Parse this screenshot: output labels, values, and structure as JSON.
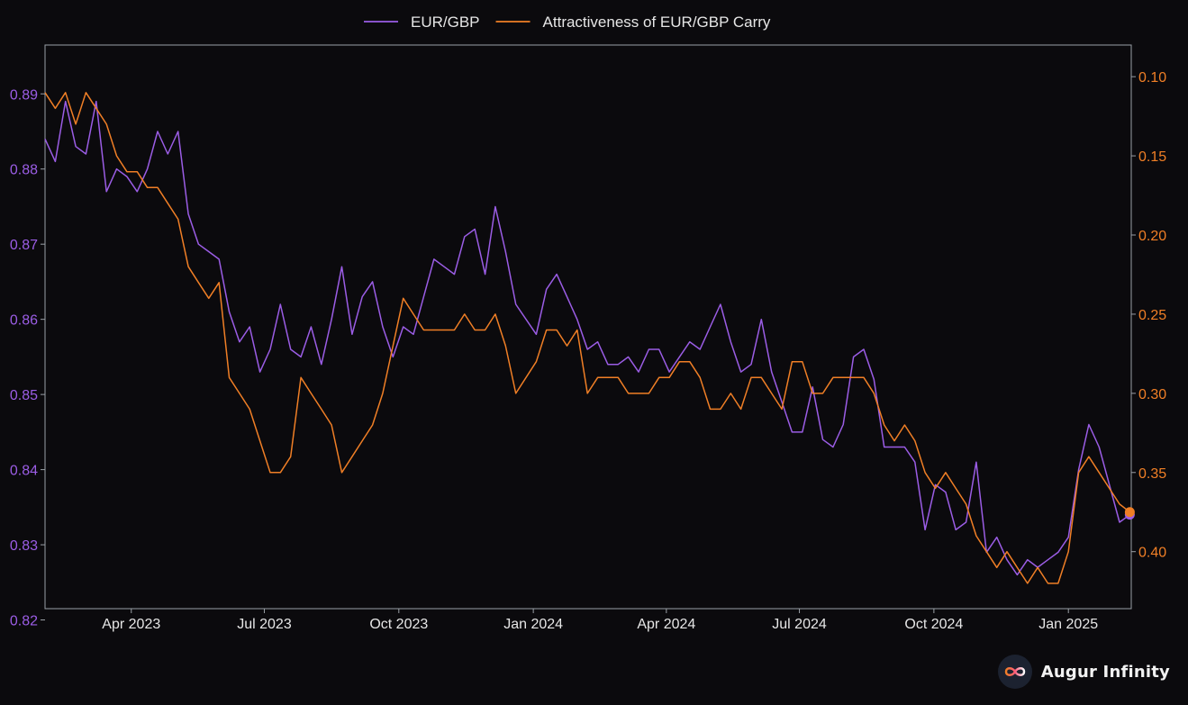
{
  "brand": {
    "name": "Augur Infinity",
    "logo_icon": "infinity-icon"
  },
  "colors": {
    "background": "#0b0a0d",
    "frame": "#9aa0a6",
    "eurgbp": "#9b5de5",
    "carry": "#f07f26",
    "tick_text_x": "#e6e6e6"
  },
  "chart_data": {
    "type": "line",
    "legend_position": "top-center",
    "grid": false,
    "x_axis": {
      "type": "date",
      "range": [
        "2023-02-01",
        "2025-02-13"
      ],
      "ticks": [
        {
          "date": "2023-04-01",
          "label": "Apr 2023"
        },
        {
          "date": "2023-07-01",
          "label": "Jul 2023"
        },
        {
          "date": "2023-10-01",
          "label": "Oct 2023"
        },
        {
          "date": "2024-01-01",
          "label": "Jan 2024"
        },
        {
          "date": "2024-04-01",
          "label": "Apr 2024"
        },
        {
          "date": "2024-07-01",
          "label": "Jul 2024"
        },
        {
          "date": "2024-10-01",
          "label": "Oct 2024"
        },
        {
          "date": "2025-01-01",
          "label": "Jan 2025"
        }
      ]
    },
    "y_left": {
      "range": [
        0.8215,
        0.8965
      ],
      "ticks": [
        0.82,
        0.83,
        0.84,
        0.85,
        0.86,
        0.87,
        0.88,
        0.89
      ],
      "tick_labels": [
        "0.82",
        "0.83",
        "0.84",
        "0.85",
        "0.86",
        "0.87",
        "0.88",
        "0.89"
      ]
    },
    "y_right": {
      "inverted": true,
      "range": [
        0.08,
        0.436
      ],
      "ticks": [
        0.1,
        0.15,
        0.2,
        0.25,
        0.3,
        0.35,
        0.4
      ],
      "tick_labels": [
        "0.10",
        "0.15",
        "0.20",
        "0.25",
        "0.30",
        "0.35",
        "0.40"
      ]
    },
    "series": [
      {
        "name": "EUR/GBP",
        "axis": "left",
        "color": "#9b5de5",
        "end_marker": true,
        "points": [
          [
            "2023-02-01",
            0.884
          ],
          [
            "2023-02-08",
            0.881
          ],
          [
            "2023-02-15",
            0.889
          ],
          [
            "2023-02-22",
            0.883
          ],
          [
            "2023-03-01",
            0.882
          ],
          [
            "2023-03-08",
            0.889
          ],
          [
            "2023-03-15",
            0.877
          ],
          [
            "2023-03-22",
            0.88
          ],
          [
            "2023-03-29",
            0.879
          ],
          [
            "2023-04-05",
            0.877
          ],
          [
            "2023-04-12",
            0.88
          ],
          [
            "2023-04-19",
            0.885
          ],
          [
            "2023-04-26",
            0.882
          ],
          [
            "2023-05-03",
            0.885
          ],
          [
            "2023-05-10",
            0.874
          ],
          [
            "2023-05-17",
            0.87
          ],
          [
            "2023-05-24",
            0.869
          ],
          [
            "2023-05-31",
            0.868
          ],
          [
            "2023-06-07",
            0.861
          ],
          [
            "2023-06-14",
            0.857
          ],
          [
            "2023-06-21",
            0.859
          ],
          [
            "2023-06-28",
            0.853
          ],
          [
            "2023-07-05",
            0.856
          ],
          [
            "2023-07-12",
            0.862
          ],
          [
            "2023-07-19",
            0.856
          ],
          [
            "2023-07-26",
            0.855
          ],
          [
            "2023-08-02",
            0.859
          ],
          [
            "2023-08-09",
            0.854
          ],
          [
            "2023-08-16",
            0.86
          ],
          [
            "2023-08-23",
            0.867
          ],
          [
            "2023-08-30",
            0.858
          ],
          [
            "2023-09-06",
            0.863
          ],
          [
            "2023-09-13",
            0.865
          ],
          [
            "2023-09-20",
            0.859
          ],
          [
            "2023-09-27",
            0.855
          ],
          [
            "2023-10-04",
            0.859
          ],
          [
            "2023-10-11",
            0.858
          ],
          [
            "2023-10-18",
            0.863
          ],
          [
            "2023-10-25",
            0.868
          ],
          [
            "2023-11-01",
            0.867
          ],
          [
            "2023-11-08",
            0.866
          ],
          [
            "2023-11-15",
            0.871
          ],
          [
            "2023-11-22",
            0.872
          ],
          [
            "2023-11-29",
            0.866
          ],
          [
            "2023-12-06",
            0.875
          ],
          [
            "2023-12-13",
            0.869
          ],
          [
            "2023-12-20",
            0.862
          ],
          [
            "2024-01-03",
            0.858
          ],
          [
            "2024-01-10",
            0.864
          ],
          [
            "2024-01-17",
            0.866
          ],
          [
            "2024-01-24",
            0.863
          ],
          [
            "2024-01-31",
            0.86
          ],
          [
            "2024-02-07",
            0.856
          ],
          [
            "2024-02-14",
            0.857
          ],
          [
            "2024-02-21",
            0.854
          ],
          [
            "2024-02-28",
            0.854
          ],
          [
            "2024-03-06",
            0.855
          ],
          [
            "2024-03-13",
            0.853
          ],
          [
            "2024-03-20",
            0.856
          ],
          [
            "2024-03-27",
            0.856
          ],
          [
            "2024-04-03",
            0.853
          ],
          [
            "2024-04-10",
            0.855
          ],
          [
            "2024-04-17",
            0.857
          ],
          [
            "2024-04-24",
            0.856
          ],
          [
            "2024-05-01",
            0.859
          ],
          [
            "2024-05-08",
            0.862
          ],
          [
            "2024-05-15",
            0.857
          ],
          [
            "2024-05-22",
            0.853
          ],
          [
            "2024-05-29",
            0.854
          ],
          [
            "2024-06-05",
            0.86
          ],
          [
            "2024-06-12",
            0.853
          ],
          [
            "2024-06-19",
            0.849
          ],
          [
            "2024-06-26",
            0.845
          ],
          [
            "2024-07-03",
            0.845
          ],
          [
            "2024-07-10",
            0.851
          ],
          [
            "2024-07-17",
            0.844
          ],
          [
            "2024-07-24",
            0.843
          ],
          [
            "2024-07-31",
            0.846
          ],
          [
            "2024-08-07",
            0.855
          ],
          [
            "2024-08-14",
            0.856
          ],
          [
            "2024-08-21",
            0.852
          ],
          [
            "2024-08-28",
            0.843
          ],
          [
            "2024-09-04",
            0.843
          ],
          [
            "2024-09-11",
            0.843
          ],
          [
            "2024-09-18",
            0.841
          ],
          [
            "2024-09-25",
            0.832
          ],
          [
            "2024-10-02",
            0.838
          ],
          [
            "2024-10-09",
            0.837
          ],
          [
            "2024-10-16",
            0.832
          ],
          [
            "2024-10-23",
            0.833
          ],
          [
            "2024-10-30",
            0.841
          ],
          [
            "2024-11-06",
            0.829
          ],
          [
            "2024-11-13",
            0.831
          ],
          [
            "2024-11-20",
            0.828
          ],
          [
            "2024-11-27",
            0.826
          ],
          [
            "2024-12-04",
            0.828
          ],
          [
            "2024-12-11",
            0.827
          ],
          [
            "2024-12-18",
            0.828
          ],
          [
            "2024-12-25",
            0.829
          ],
          [
            "2025-01-01",
            0.831
          ],
          [
            "2025-01-08",
            0.84
          ],
          [
            "2025-01-15",
            0.846
          ],
          [
            "2025-01-22",
            0.843
          ],
          [
            "2025-01-29",
            0.838
          ],
          [
            "2025-02-05",
            0.833
          ],
          [
            "2025-02-12",
            0.834
          ]
        ]
      },
      {
        "name": "Attractiveness of EUR/GBP Carry",
        "axis": "right",
        "color": "#f07f26",
        "end_marker": true,
        "points": [
          [
            "2023-02-01",
            0.11
          ],
          [
            "2023-02-08",
            0.12
          ],
          [
            "2023-02-15",
            0.11
          ],
          [
            "2023-02-22",
            0.13
          ],
          [
            "2023-03-01",
            0.11
          ],
          [
            "2023-03-08",
            0.12
          ],
          [
            "2023-03-15",
            0.13
          ],
          [
            "2023-03-22",
            0.15
          ],
          [
            "2023-03-29",
            0.16
          ],
          [
            "2023-04-05",
            0.16
          ],
          [
            "2023-04-12",
            0.17
          ],
          [
            "2023-04-19",
            0.17
          ],
          [
            "2023-04-26",
            0.18
          ],
          [
            "2023-05-03",
            0.19
          ],
          [
            "2023-05-10",
            0.22
          ],
          [
            "2023-05-17",
            0.23
          ],
          [
            "2023-05-24",
            0.24
          ],
          [
            "2023-05-31",
            0.23
          ],
          [
            "2023-06-07",
            0.29
          ],
          [
            "2023-06-14",
            0.3
          ],
          [
            "2023-06-21",
            0.31
          ],
          [
            "2023-06-28",
            0.33
          ],
          [
            "2023-07-05",
            0.35
          ],
          [
            "2023-07-12",
            0.35
          ],
          [
            "2023-07-19",
            0.34
          ],
          [
            "2023-07-26",
            0.29
          ],
          [
            "2023-08-02",
            0.3
          ],
          [
            "2023-08-09",
            0.31
          ],
          [
            "2023-08-16",
            0.32
          ],
          [
            "2023-08-23",
            0.35
          ],
          [
            "2023-08-30",
            0.34
          ],
          [
            "2023-09-06",
            0.33
          ],
          [
            "2023-09-13",
            0.32
          ],
          [
            "2023-09-20",
            0.3
          ],
          [
            "2023-09-27",
            0.27
          ],
          [
            "2023-10-04",
            0.24
          ],
          [
            "2023-10-11",
            0.25
          ],
          [
            "2023-10-18",
            0.26
          ],
          [
            "2023-10-25",
            0.26
          ],
          [
            "2023-11-01",
            0.26
          ],
          [
            "2023-11-08",
            0.26
          ],
          [
            "2023-11-15",
            0.25
          ],
          [
            "2023-11-22",
            0.26
          ],
          [
            "2023-11-29",
            0.26
          ],
          [
            "2023-12-06",
            0.25
          ],
          [
            "2023-12-13",
            0.27
          ],
          [
            "2023-12-20",
            0.3
          ],
          [
            "2024-01-03",
            0.28
          ],
          [
            "2024-01-10",
            0.26
          ],
          [
            "2024-01-17",
            0.26
          ],
          [
            "2024-01-24",
            0.27
          ],
          [
            "2024-01-31",
            0.26
          ],
          [
            "2024-02-07",
            0.3
          ],
          [
            "2024-02-14",
            0.29
          ],
          [
            "2024-02-21",
            0.29
          ],
          [
            "2024-02-28",
            0.29
          ],
          [
            "2024-03-06",
            0.3
          ],
          [
            "2024-03-13",
            0.3
          ],
          [
            "2024-03-20",
            0.3
          ],
          [
            "2024-03-27",
            0.29
          ],
          [
            "2024-04-03",
            0.29
          ],
          [
            "2024-04-10",
            0.28
          ],
          [
            "2024-04-17",
            0.28
          ],
          [
            "2024-04-24",
            0.29
          ],
          [
            "2024-05-01",
            0.31
          ],
          [
            "2024-05-08",
            0.31
          ],
          [
            "2024-05-15",
            0.3
          ],
          [
            "2024-05-22",
            0.31
          ],
          [
            "2024-05-29",
            0.29
          ],
          [
            "2024-06-05",
            0.29
          ],
          [
            "2024-06-12",
            0.3
          ],
          [
            "2024-06-19",
            0.31
          ],
          [
            "2024-06-26",
            0.28
          ],
          [
            "2024-07-03",
            0.28
          ],
          [
            "2024-07-10",
            0.3
          ],
          [
            "2024-07-17",
            0.3
          ],
          [
            "2024-07-24",
            0.29
          ],
          [
            "2024-07-31",
            0.29
          ],
          [
            "2024-08-07",
            0.29
          ],
          [
            "2024-08-14",
            0.29
          ],
          [
            "2024-08-21",
            0.3
          ],
          [
            "2024-08-28",
            0.32
          ],
          [
            "2024-09-04",
            0.33
          ],
          [
            "2024-09-11",
            0.32
          ],
          [
            "2024-09-18",
            0.33
          ],
          [
            "2024-09-25",
            0.35
          ],
          [
            "2024-10-02",
            0.36
          ],
          [
            "2024-10-09",
            0.35
          ],
          [
            "2024-10-16",
            0.36
          ],
          [
            "2024-10-23",
            0.37
          ],
          [
            "2024-10-30",
            0.39
          ],
          [
            "2024-11-06",
            0.4
          ],
          [
            "2024-11-13",
            0.41
          ],
          [
            "2024-11-20",
            0.4
          ],
          [
            "2024-11-27",
            0.41
          ],
          [
            "2024-12-04",
            0.42
          ],
          [
            "2024-12-11",
            0.41
          ],
          [
            "2024-12-18",
            0.42
          ],
          [
            "2024-12-25",
            0.42
          ],
          [
            "2025-01-01",
            0.4
          ],
          [
            "2025-01-08",
            0.35
          ],
          [
            "2025-01-15",
            0.34
          ],
          [
            "2025-01-22",
            0.35
          ],
          [
            "2025-01-29",
            0.36
          ],
          [
            "2025-02-05",
            0.37
          ],
          [
            "2025-02-12",
            0.375
          ]
        ]
      }
    ]
  }
}
